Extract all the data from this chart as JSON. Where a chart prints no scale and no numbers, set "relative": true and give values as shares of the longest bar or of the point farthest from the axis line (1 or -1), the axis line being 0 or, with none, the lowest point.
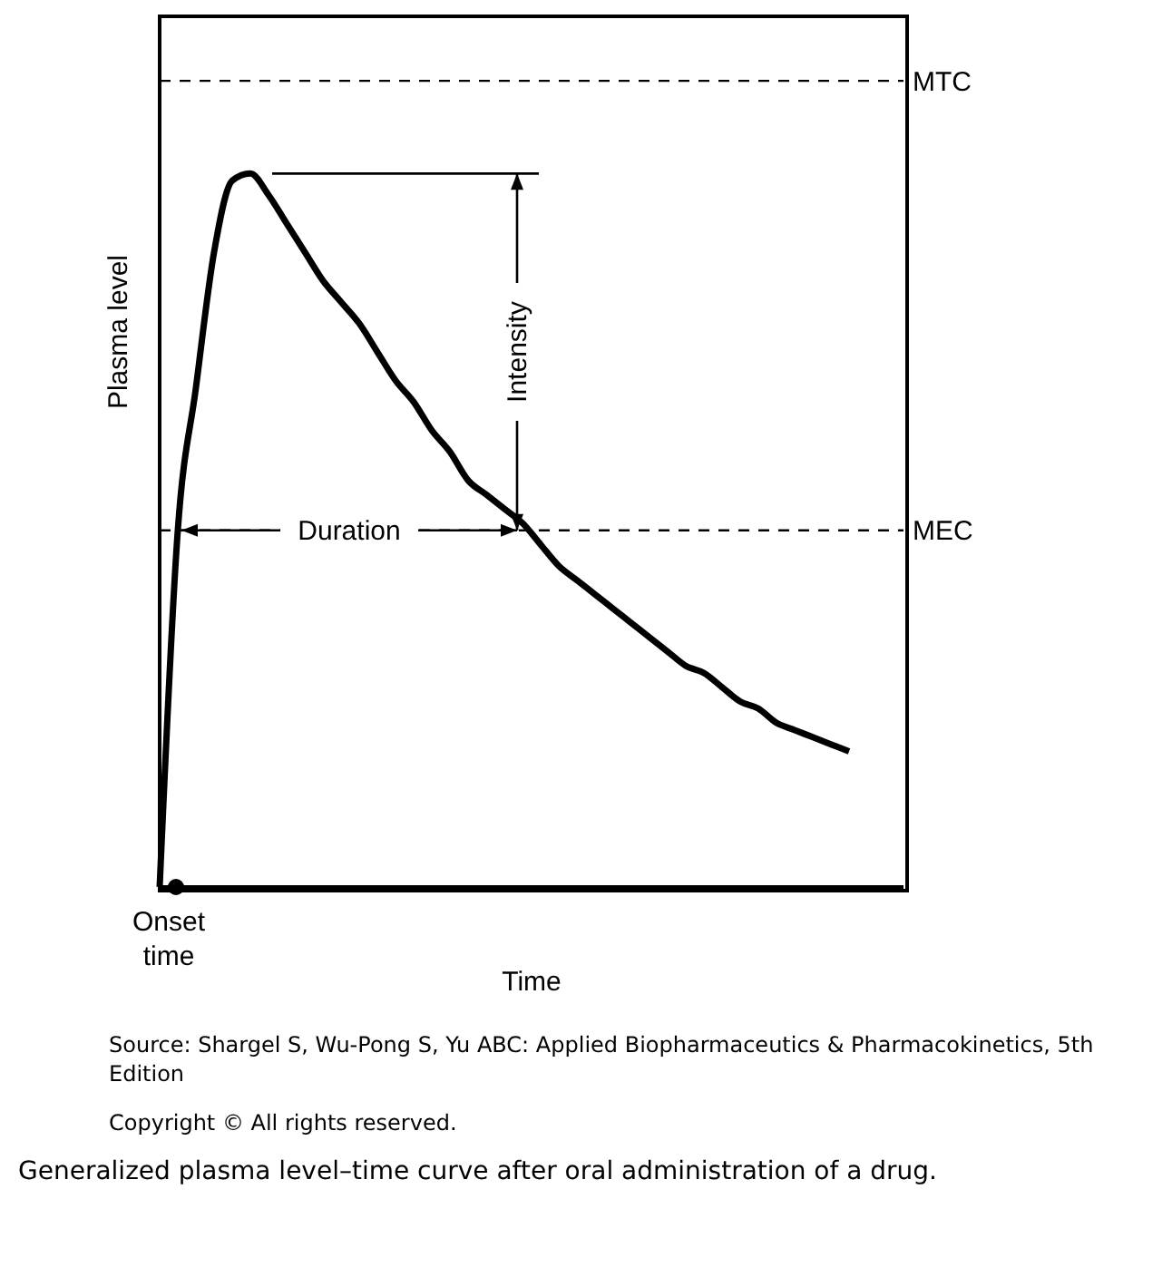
{
  "chart_data": {
    "type": "line",
    "relative": true,
    "xlabel": "Time",
    "ylabel": "Plasma level",
    "categories": [
      null,
      null,
      null,
      null,
      null,
      null,
      null,
      null,
      null,
      null,
      null,
      null,
      null,
      null,
      null,
      null,
      null,
      null,
      null,
      null,
      null,
      null,
      null,
      null,
      null,
      null,
      null,
      null,
      null,
      null,
      null,
      null,
      null,
      null,
      null,
      null,
      null,
      null,
      null,
      null,
      null,
      null
    ],
    "values": [
      0,
      0.5,
      0.7,
      0.89,
      0.99,
      1,
      0.97,
      0.93,
      0.89,
      0.85,
      0.82,
      0.79,
      0.75,
      0.71,
      0.68,
      0.64,
      0.61,
      0.57,
      0.55,
      0.53,
      0.51,
      0.48,
      0.45,
      0.43,
      0.41,
      0.39,
      0.37,
      0.35,
      0.33,
      0.31,
      0.3,
      0.28,
      0.26,
      0.25,
      0.23,
      0.22,
      0.21,
      0.2,
      0.19,
      null,
      null,
      null
    ],
    "color": "#000000",
    "marker": "none",
    "line_style": "solid",
    "ref_lines": [
      {
        "axis": "y",
        "value": 1.13,
        "label": "MTC",
        "color": "#000000",
        "line_style": "dashed"
      },
      {
        "axis": "y",
        "value": 0.5,
        "label": "MEC",
        "color": "#000000",
        "line_style": "dashed"
      }
    ],
    "annotations": [
      "Onset time",
      "Duration",
      "Intensity",
      "Source: Shargel S, Wu-Pong S, Yu ABC: Applied Biopharmaceutics & Pharmacokinetics, 5th Edition",
      "Copyright © All rights reserved.",
      "Generalized plasma level–time curve after oral administration of a drug."
    ]
  }
}
